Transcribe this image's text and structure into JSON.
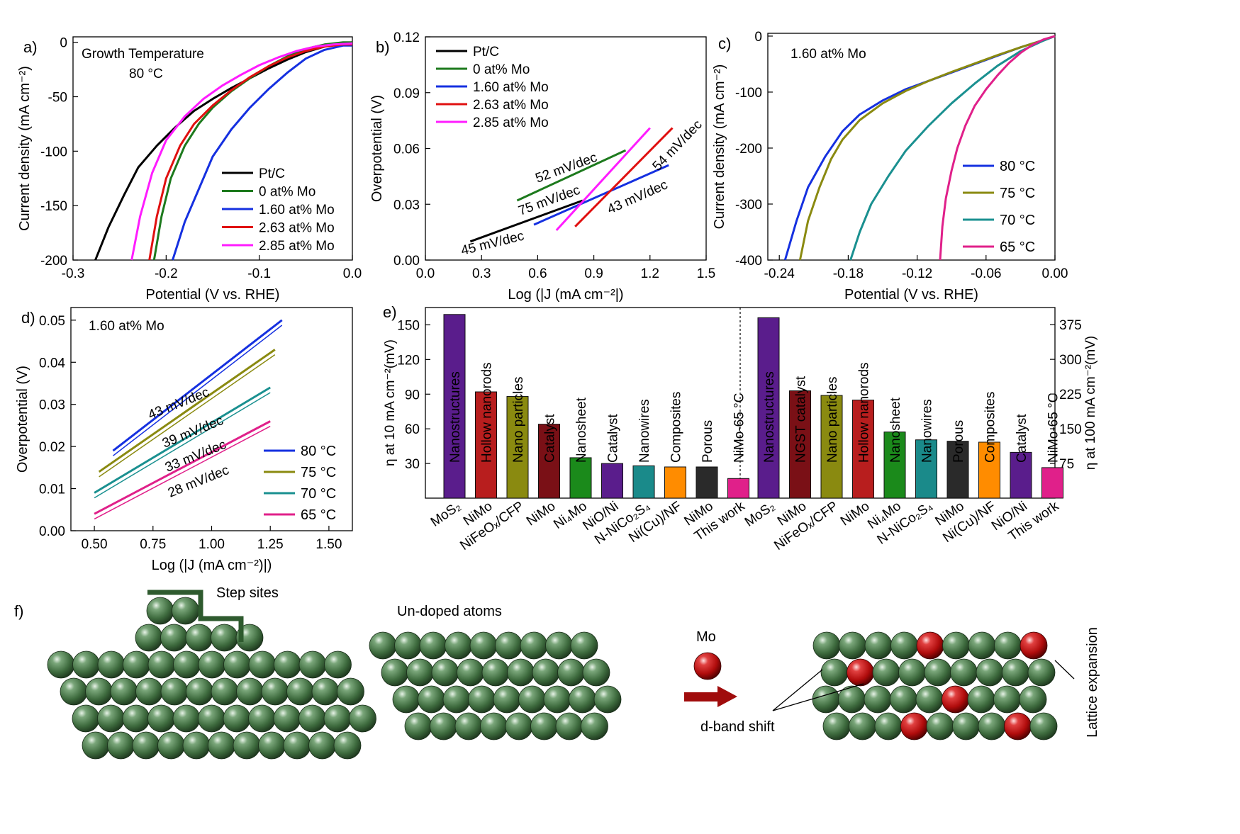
{
  "colors": {
    "black": "#000000",
    "green": "#1d7a1d",
    "blue": "#1530e0",
    "red": "#e01010",
    "magenta": "#ff1cff",
    "olive": "#8a8a10",
    "teal": "#1a9090",
    "pink": "#e0208a",
    "sphere": "#3e6b3e",
    "mo": "#c01010"
  },
  "chart_data": [
    {
      "id": "a",
      "type": "line",
      "panel_label": "a)",
      "xlabel": "Potential (V vs. RHE)",
      "ylabel": "Current density (mA cm⁻²)",
      "xlim": [
        -0.3,
        0.0
      ],
      "ylim": [
        -200,
        5
      ],
      "xticks": [
        "-0.3",
        "-0.2",
        "-0.1",
        "0.0"
      ],
      "yticks": [
        "0",
        "-50",
        "-100",
        "-150",
        "-200"
      ],
      "annotations": [
        "Growth Temperature",
        "80 °C"
      ],
      "legend_position": "bottom-right",
      "series": [
        {
          "name": "Pt/C",
          "color": "#000000",
          "x": [
            -0.276,
            -0.262,
            -0.245,
            -0.23,
            -0.21,
            -0.19,
            -0.17,
            -0.15,
            -0.13,
            -0.11,
            -0.09,
            -0.07,
            -0.05,
            -0.03,
            -0.01,
            0.0
          ],
          "y": [
            -200,
            -170,
            -140,
            -115,
            -95,
            -78,
            -63,
            -52,
            -42,
            -33,
            -24,
            -16,
            -9,
            -4,
            -1,
            0
          ]
        },
        {
          "name": "0 at% Mo",
          "color": "#1d7a1d",
          "x": [
            -0.213,
            -0.205,
            -0.195,
            -0.18,
            -0.165,
            -0.15,
            -0.13,
            -0.11,
            -0.09,
            -0.07,
            -0.05,
            -0.03,
            -0.01,
            0.0
          ],
          "y": [
            -200,
            -160,
            -125,
            -95,
            -75,
            -60,
            -45,
            -33,
            -22,
            -13,
            -6,
            -2,
            0,
            0
          ]
        },
        {
          "name": "1.60 at% Mo",
          "color": "#1530e0",
          "x": [
            -0.193,
            -0.18,
            -0.165,
            -0.15,
            -0.13,
            -0.11,
            -0.09,
            -0.07,
            -0.05,
            -0.03,
            -0.01,
            0.0
          ],
          "y": [
            -200,
            -165,
            -135,
            -105,
            -80,
            -60,
            -43,
            -28,
            -15,
            -7,
            -3,
            -3
          ]
        },
        {
          "name": "2.63 at% Mo",
          "color": "#e01010",
          "x": [
            -0.218,
            -0.21,
            -0.2,
            -0.185,
            -0.17,
            -0.15,
            -0.13,
            -0.11,
            -0.09,
            -0.07,
            -0.05,
            -0.03,
            -0.01,
            0.0
          ],
          "y": [
            -200,
            -160,
            -125,
            -95,
            -75,
            -58,
            -44,
            -32,
            -22,
            -14,
            -8,
            -4,
            -2,
            -2
          ]
        },
        {
          "name": "2.85 at% Mo",
          "color": "#ff1cff",
          "x": [
            -0.237,
            -0.228,
            -0.215,
            -0.2,
            -0.18,
            -0.16,
            -0.14,
            -0.12,
            -0.1,
            -0.08,
            -0.06,
            -0.04,
            -0.02,
            0.0
          ],
          "y": [
            -200,
            -160,
            -120,
            -90,
            -68,
            -52,
            -40,
            -30,
            -21,
            -14,
            -8,
            -4,
            -2,
            -1
          ]
        }
      ]
    },
    {
      "id": "b",
      "type": "line",
      "panel_label": "b)",
      "xlabel": "Log (|J (mA cm⁻²|)",
      "ylabel": "Overpotential (V)",
      "xlim": [
        0.0,
        1.5
      ],
      "ylim": [
        0.0,
        0.12
      ],
      "xticks": [
        "0.0",
        "0.3",
        "0.6",
        "0.9",
        "1.2",
        "1.5"
      ],
      "yticks": [
        "0.00",
        "0.03",
        "0.06",
        "0.09",
        "0.12"
      ],
      "legend_position": "top-left",
      "series": [
        {
          "name": "Pt/C",
          "color": "#000000",
          "x": [
            0.24,
            0.84
          ],
          "y": [
            0.01,
            0.032
          ],
          "label": "45 mV/dec"
        },
        {
          "name": "0 at% Mo",
          "color": "#1d7a1d",
          "x": [
            0.49,
            1.07
          ],
          "y": [
            0.032,
            0.059
          ],
          "label": "52 mV/dec"
        },
        {
          "name": "1.60 at% Mo",
          "color": "#1530e0",
          "x": [
            0.58,
            1.3
          ],
          "y": [
            0.019,
            0.051
          ],
          "label": "43 mV/dec"
        },
        {
          "name": "2.63 at% Mo",
          "color": "#e01010",
          "x": [
            0.8,
            1.32
          ],
          "y": [
            0.018,
            0.071
          ],
          "label": "54 mV/dec"
        },
        {
          "name": "2.85 at% Mo",
          "color": "#ff1cff",
          "x": [
            0.7,
            1.2
          ],
          "y": [
            0.016,
            0.071
          ],
          "label": "75 mV/dec"
        }
      ]
    },
    {
      "id": "c",
      "type": "line",
      "panel_label": "c)",
      "xlabel": "Potential (V vs. RHE)",
      "ylabel": "Current density (mA cm⁻²)",
      "xlim": [
        -0.25,
        0.0
      ],
      "ylim": [
        -400,
        5
      ],
      "xticks": [
        "-0.24",
        "-0.18",
        "-0.12",
        "-0.06",
        "0.00"
      ],
      "yticks": [
        "0",
        "-100",
        "-200",
        "-300",
        "-400"
      ],
      "annotations": [
        "1.60 at% Mo"
      ],
      "legend_position": "bottom-right",
      "series": [
        {
          "name": "80 °C",
          "color": "#1530e0",
          "x": [
            -0.235,
            -0.225,
            -0.215,
            -0.2,
            -0.185,
            -0.17,
            -0.15,
            -0.13,
            -0.11,
            -0.09,
            -0.07,
            -0.05,
            -0.03,
            -0.01,
            0.0
          ],
          "y": [
            -400,
            -330,
            -270,
            -215,
            -170,
            -140,
            -115,
            -95,
            -80,
            -65,
            -50,
            -35,
            -20,
            -7,
            0
          ]
        },
        {
          "name": "75 °C",
          "color": "#8a8a10",
          "x": [
            -0.222,
            -0.215,
            -0.205,
            -0.195,
            -0.185,
            -0.17,
            -0.15,
            -0.13,
            -0.11,
            -0.09,
            -0.07,
            -0.05,
            -0.03,
            -0.01,
            0.0
          ],
          "y": [
            -400,
            -330,
            -270,
            -220,
            -185,
            -150,
            -120,
            -98,
            -80,
            -64,
            -49,
            -34,
            -20,
            -7,
            0
          ]
        },
        {
          "name": "70 °C",
          "color": "#1a9090",
          "x": [
            -0.178,
            -0.17,
            -0.16,
            -0.145,
            -0.13,
            -0.11,
            -0.09,
            -0.07,
            -0.05,
            -0.03,
            -0.01,
            0.0
          ],
          "y": [
            -400,
            -350,
            -300,
            -250,
            -205,
            -160,
            -120,
            -85,
            -53,
            -27,
            -8,
            0
          ]
        },
        {
          "name": "65 °C",
          "color": "#e0208a",
          "x": [
            -0.1,
            -0.098,
            -0.095,
            -0.09,
            -0.085,
            -0.078,
            -0.07,
            -0.06,
            -0.05,
            -0.04,
            -0.03,
            -0.02,
            -0.01,
            0.0
          ],
          "y": [
            -400,
            -340,
            -290,
            -240,
            -200,
            -160,
            -125,
            -95,
            -70,
            -48,
            -30,
            -16,
            -6,
            0
          ]
        }
      ]
    },
    {
      "id": "d",
      "type": "line",
      "panel_label": "d)",
      "xlabel": "Log (|J (mA cm⁻²)|)",
      "ylabel": "Overpotential (V)",
      "xlim": [
        0.4,
        1.6
      ],
      "ylim": [
        0.0,
        0.053
      ],
      "xticks": [
        "0.50",
        "0.75",
        "1.00",
        "1.25",
        "1.50"
      ],
      "yticks": [
        "0.00",
        "0.01",
        "0.02",
        "0.03",
        "0.04",
        "0.05"
      ],
      "annotations": [
        "1.60 at% Mo"
      ],
      "legend_position": "bottom-right",
      "series": [
        {
          "name": "80 °C",
          "color": "#1530e0",
          "x": [
            0.58,
            1.3
          ],
          "y": [
            0.019,
            0.05
          ],
          "label": "43 mV/dec"
        },
        {
          "name": "75 °C",
          "color": "#8a8a10",
          "x": [
            0.52,
            1.27
          ],
          "y": [
            0.014,
            0.043
          ],
          "label": "39 mV/dec"
        },
        {
          "name": "70 °C",
          "color": "#1a9090",
          "x": [
            0.5,
            1.25
          ],
          "y": [
            0.009,
            0.034
          ],
          "label": "33 mV/dec"
        },
        {
          "name": "65 °C",
          "color": "#e0208a",
          "x": [
            0.5,
            1.25
          ],
          "y": [
            0.004,
            0.026
          ],
          "label": "28 mV/dec"
        }
      ]
    },
    {
      "id": "e",
      "type": "bar",
      "panel_label": "e)",
      "ylabel_left": "η at 10 mA cm⁻²(mV)",
      "ylabel_right": "η at 100 mA cm⁻²(mV)",
      "ylim_left": [
        0,
        165
      ],
      "ylim_right": [
        0,
        412
      ],
      "yticks_left": [
        "30",
        "60",
        "90",
        "120",
        "150"
      ],
      "yticks_right": [
        "75",
        "150",
        "225",
        "300",
        "375"
      ],
      "left_group": [
        {
          "category": "MoS₂",
          "label": "Nanostructures",
          "value": 159,
          "color": "#5a1d8c"
        },
        {
          "category": "NiMo",
          "label": "Hollow nanorods",
          "value": 92,
          "color": "#b81e1e"
        },
        {
          "category": "NiFeOₓ/CFP",
          "label": "Nano particles",
          "value": 88,
          "color": "#8a8a10"
        },
        {
          "category": "NiMo",
          "label": "Catalyst",
          "value": 64,
          "color": "#7a1016"
        },
        {
          "category": "Ni₄Mo",
          "label": "Nanosheet",
          "value": 35,
          "color": "#1b8a1b"
        },
        {
          "category": "NiO/Ni",
          "label": "Catalyst",
          "value": 30,
          "color": "#5a1d8c"
        },
        {
          "category": "N-NiCo₂S₄",
          "label": "Nanowires",
          "value": 28,
          "color": "#1a8a8a"
        },
        {
          "category": "Ni(Cu)/NF",
          "label": "Composites",
          "value": 27,
          "color": "#ff8c00"
        },
        {
          "category": "NiMo",
          "label": "Porous",
          "value": 27,
          "color": "#2a2a2a"
        },
        {
          "category": "This work",
          "label": "NiMo-65 °C",
          "value": 17,
          "color": "#e0208a"
        }
      ],
      "right_group": [
        {
          "category": "MoS₂",
          "label": "Nanostructures",
          "value": 390,
          "color": "#5a1d8c"
        },
        {
          "category": "NiMo",
          "label": "NGST catalyst",
          "value": 232,
          "color": "#7a1016"
        },
        {
          "category": "NiFeOₓ/CFP",
          "label": "Nano particles",
          "value": 222,
          "color": "#8a8a10"
        },
        {
          "category": "NiMo",
          "label": "Hollow nanorods",
          "value": 212,
          "color": "#b81e1e"
        },
        {
          "category": "Ni₄Mo",
          "label": "Nanosheet",
          "value": 143,
          "color": "#1b8a1b"
        },
        {
          "category": "N-NiCo₂S₄",
          "label": "Nanowires",
          "value": 126,
          "color": "#1a8a8a"
        },
        {
          "category": "NiMo",
          "label": "Porous",
          "value": 123,
          "color": "#2a2a2a"
        },
        {
          "category": "Ni(Cu)/NF",
          "label": "Composites",
          "value": 121,
          "color": "#ff8c00"
        },
        {
          "category": "NiO/Ni",
          "label": "Catalyst",
          "value": 99,
          "color": "#5a1d8c"
        },
        {
          "category": "This work",
          "label": "NiMo-65 °C",
          "value": 66,
          "color": "#e0208a"
        }
      ]
    }
  ],
  "schematic": {
    "panel_label": "f)",
    "step_sites": "Step sites",
    "undoped": "Un-doped atoms",
    "mo": "Mo",
    "d_band": "d-band shift",
    "lattice": "Lattice expansion"
  }
}
